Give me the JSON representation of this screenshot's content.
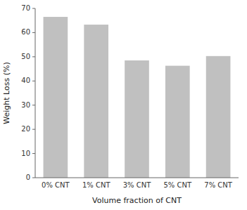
{
  "chart_data": {
    "type": "bar",
    "categories": [
      "0% CNT",
      "1% CNT",
      "3% CNT",
      "5% CNT",
      "7% CNT"
    ],
    "values": [
      66.5,
      63.3,
      48.5,
      46.3,
      50.3
    ],
    "color": "#c0c0c0",
    "xlabel": "Volume fraction of CNT",
    "ylabel": "Weight Loss (%)",
    "ylim": [
      0,
      70
    ],
    "yticks": [
      0,
      10,
      20,
      30,
      40,
      50,
      60,
      70
    ],
    "grid": false
  }
}
